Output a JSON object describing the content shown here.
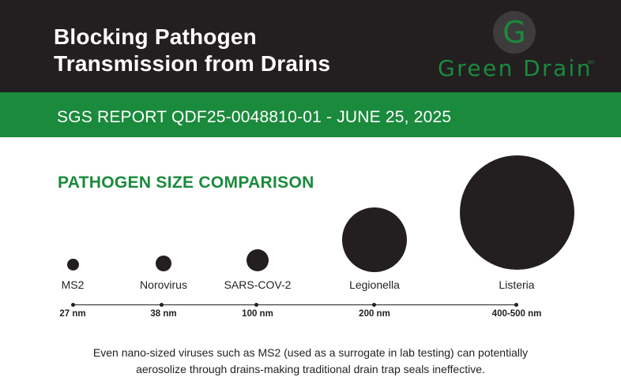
{
  "header": {
    "title_line1": "Blocking Pathogen",
    "title_line2": "Transmission from Drains",
    "background": "#231f20"
  },
  "logo": {
    "letter": "G",
    "wordmark": "Green Drain",
    "tm": "tm",
    "color": "#1a8a3c"
  },
  "report_band": {
    "text": "SGS REPORT QDF25-0048810-01 - JUNE 25, 2025",
    "background": "#1a8a3c"
  },
  "section_title": "PATHOGEN SIZE COMPARISON",
  "pathogens": [
    {
      "name": "MS2",
      "size": "27 nm"
    },
    {
      "name": "Norovirus",
      "size": "38 nm"
    },
    {
      "name": "SARS-COV-2",
      "size": "100 nm"
    },
    {
      "name": "Legionella",
      "size": "200 nm"
    },
    {
      "name": "Listeria",
      "size": "400-500 nm"
    }
  ],
  "footer": {
    "line1": "Even nano-sized viruses such as MS2 (used as a surrogate in lab testing) can potentially",
    "line2": "aerosolize through drains-making traditional drain trap seals ineffective."
  }
}
